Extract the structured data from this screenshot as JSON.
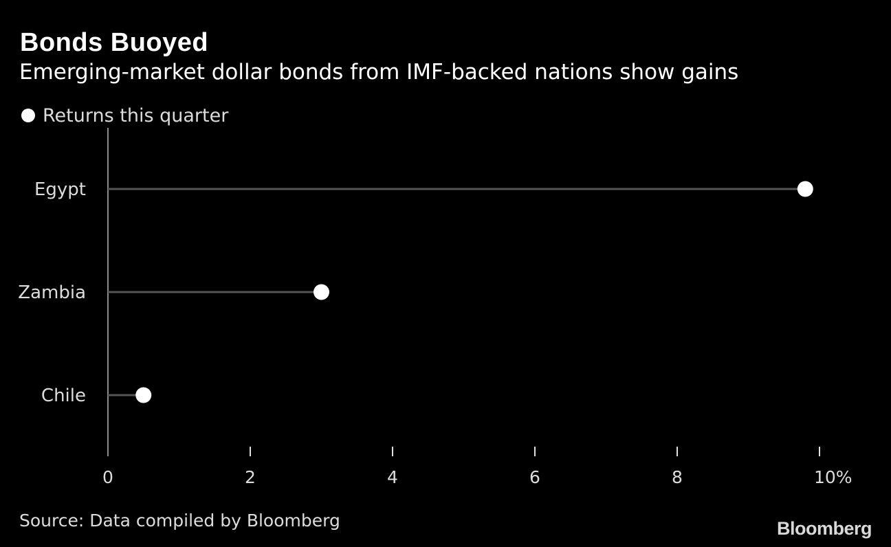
{
  "chart_data": {
    "type": "lollipop",
    "title": "Bonds Buoyed",
    "subtitle": "Emerging-market dollar bonds from IMF-backed nations show gains",
    "categories": [
      "Egypt",
      "Zambia",
      "Chile"
    ],
    "series": [
      {
        "name": "Returns this quarter",
        "values": [
          9.8,
          3.0,
          0.5
        ]
      }
    ],
    "xlim": [
      0,
      10
    ],
    "x_ticks": [
      0,
      2,
      4,
      6,
      8,
      10
    ],
    "x_tick_labels": [
      "0",
      "2",
      "4",
      "6",
      "8",
      "10%"
    ],
    "grid": false,
    "legend_position": "top-left",
    "colors": {
      "background": "#000000",
      "marker": "#ffffff",
      "stem": "#555555",
      "axis": "#8c8c8c",
      "text": "#dcdcdc"
    }
  },
  "footer": {
    "source": "Source: Data compiled by Bloomberg",
    "brand": "Bloomberg"
  }
}
